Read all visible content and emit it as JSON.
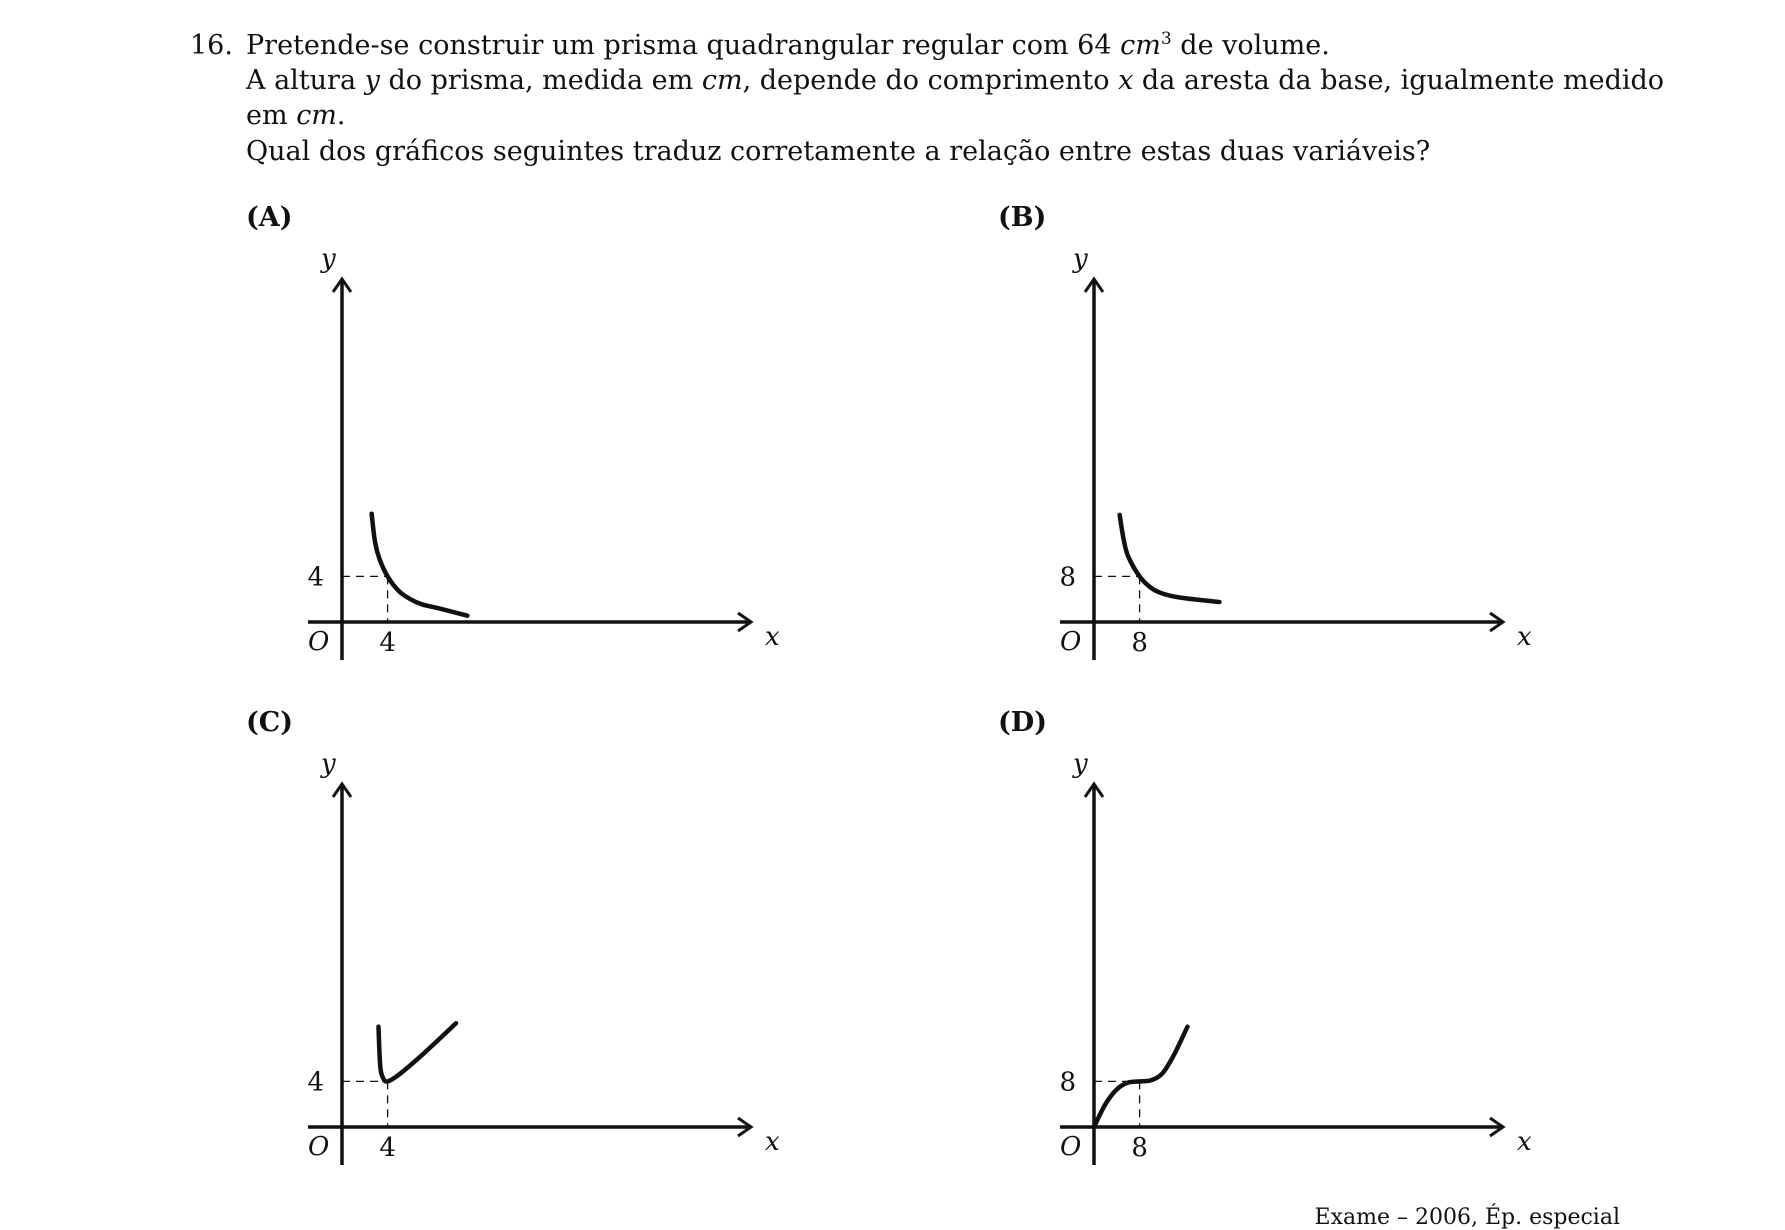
{
  "question": {
    "number": "16.",
    "line1_before": "Pretende-se construir um prisma quadrangular regular com 64",
    "line1_unit": "cm",
    "line1_exp": "3",
    "line1_after": "de volume.",
    "line2_a": "A altura",
    "line2_var_y": "y",
    "line2_b": "do prisma, medida em",
    "line2_unit": "cm",
    "line2_c": ", depende do comprimento",
    "line2_var_x": "x",
    "line2_d": "da aresta da base, igualmente medido",
    "line3_a": "em",
    "line3_unit": "cm",
    "line3_b": ".",
    "line4": "Qual dos gráficos seguintes traduz corretamente a relação entre estas duas variáveis?"
  },
  "chart_data": [
    {
      "option": "(A)",
      "type": "line",
      "shape": "decreasing hyperbola",
      "xlabel": "x",
      "ylabel": "y",
      "origin_label": "O",
      "x_tick": "4",
      "y_tick": "4",
      "marked_point": [
        4,
        4
      ],
      "xlim": [
        0,
        12
      ],
      "ylim": [
        0,
        12
      ],
      "points": [
        [
          2.6,
          9.5
        ],
        [
          2.9,
          7
        ],
        [
          3.3,
          5.5
        ],
        [
          4,
          4
        ],
        [
          5,
          2.7
        ],
        [
          6,
          2
        ],
        [
          7,
          1.55
        ],
        [
          8.5,
          1.2
        ],
        [
          11,
          0.55
        ]
      ]
    },
    {
      "option": "(B)",
      "type": "line",
      "shape": "decreasing hyperbola",
      "xlabel": "x",
      "ylabel": "y",
      "origin_label": "O",
      "x_tick": "8",
      "y_tick": "8",
      "marked_point": [
        8,
        8
      ],
      "xlim": [
        0,
        24
      ],
      "ylim": [
        0,
        24
      ],
      "points": [
        [
          4.5,
          18.8
        ],
        [
          5.2,
          14.5
        ],
        [
          6,
          11.5
        ],
        [
          8,
          8
        ],
        [
          10,
          6
        ],
        [
          12,
          5
        ],
        [
          15,
          4.3
        ],
        [
          22,
          3.5
        ]
      ]
    },
    {
      "option": "(C)",
      "type": "line",
      "shape": "minimum at marked point",
      "xlabel": "x",
      "ylabel": "y",
      "origin_label": "O",
      "x_tick": "4",
      "y_tick": "4",
      "marked_point": [
        4,
        4
      ],
      "xlim": [
        0,
        12
      ],
      "ylim": [
        0,
        12
      ],
      "points": [
        [
          3.2,
          8.8
        ],
        [
          3.35,
          5.4
        ],
        [
          3.6,
          4.3
        ],
        [
          4,
          4
        ],
        [
          5,
          4.6
        ],
        [
          7,
          6.3
        ],
        [
          10,
          9.1
        ]
      ]
    },
    {
      "option": "(D)",
      "type": "line",
      "shape": "increasing cubic with inflection at marked point",
      "xlabel": "x",
      "ylabel": "y",
      "origin_label": "O",
      "x_tick": "8",
      "y_tick": "8",
      "marked_point": [
        8,
        8
      ],
      "xlim": [
        0,
        24
      ],
      "ylim": [
        0,
        24
      ],
      "points": [
        [
          0,
          0
        ],
        [
          2,
          4
        ],
        [
          4,
          6.6
        ],
        [
          6,
          7.8
        ],
        [
          8,
          8
        ],
        [
          10,
          8.2
        ],
        [
          12,
          9.4
        ],
        [
          14,
          12.6
        ],
        [
          16.4,
          17.6
        ]
      ]
    }
  ],
  "source": "Exame – 2006, Ép. especial"
}
